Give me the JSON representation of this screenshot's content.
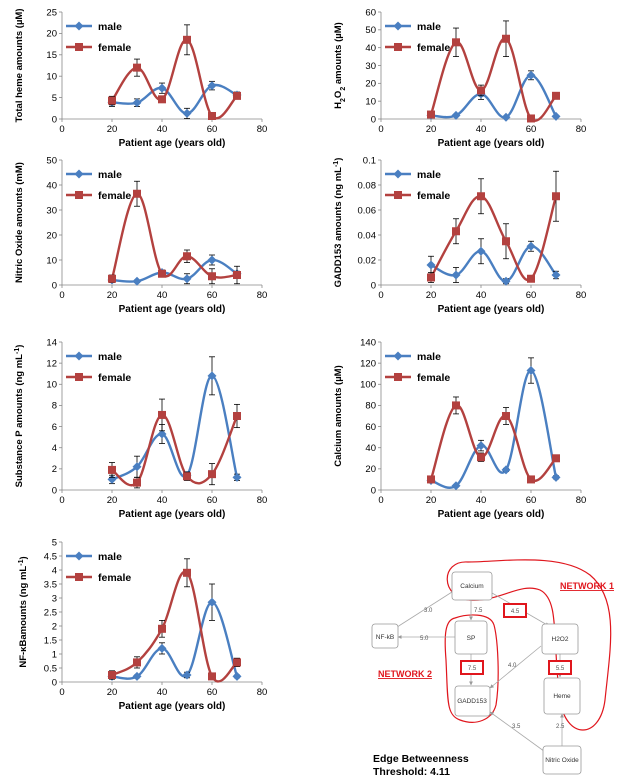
{
  "colors": {
    "male": "#4a7fc1",
    "female": "#b3413f",
    "network": "#e0161d"
  },
  "chart_data": [
    {
      "type": "line",
      "ylabel": "Total heme amounts (µM)",
      "xlabel": "Patient age (years old)",
      "xlim": [
        0,
        80
      ],
      "xticks": [
        0,
        20,
        40,
        60,
        80
      ],
      "ylim": [
        0,
        25
      ],
      "yticks": [
        0,
        5,
        10,
        15,
        20,
        25
      ],
      "legend": "top-left",
      "series": [
        {
          "name": "male",
          "x": [
            20,
            30,
            40,
            50,
            60,
            70
          ],
          "y": [
            3.9,
            3.8,
            7.2,
            1.3,
            7.8,
            5.6
          ],
          "err": [
            1.0,
            0.9,
            1.2,
            1.2,
            1.0,
            0.7
          ]
        },
        {
          "name": "female",
          "x": [
            20,
            30,
            40,
            50,
            60,
            70
          ],
          "y": [
            4.3,
            12.0,
            4.6,
            18.5,
            0.7,
            5.4
          ],
          "err": [
            1.0,
            2.0,
            0.6,
            3.5,
            0.3,
            0.7
          ]
        }
      ]
    },
    {
      "type": "line",
      "ylabel": "H2O2 amounts (µM)",
      "xlabel": "Patient age (years old)",
      "xlim": [
        0,
        80
      ],
      "xticks": [
        0,
        20,
        40,
        60,
        80
      ],
      "ylim": [
        0,
        60
      ],
      "yticks": [
        0,
        10,
        20,
        30,
        40,
        50,
        60
      ],
      "legend": "top-left",
      "series": [
        {
          "name": "male",
          "x": [
            20,
            30,
            40,
            50,
            60,
            70
          ],
          "y": [
            2.0,
            2.0,
            14.0,
            1.0,
            24.5,
            1.5
          ],
          "err": [
            0.5,
            0.5,
            3.0,
            0.5,
            2.5,
            0.5
          ]
        },
        {
          "name": "female",
          "x": [
            20,
            30,
            40,
            50,
            60,
            70
          ],
          "y": [
            2.5,
            43.0,
            16.0,
            45.0,
            0.3,
            13.0
          ],
          "err": [
            0.6,
            8.0,
            3.0,
            10.0,
            0.2,
            1.2
          ]
        }
      ]
    },
    {
      "type": "line",
      "ylabel": "Nitric Oxide amounts (mM)",
      "xlabel": "Patient age (years old)",
      "xlim": [
        0,
        80
      ],
      "xticks": [
        0,
        20,
        40,
        60,
        80
      ],
      "ylim": [
        0,
        50
      ],
      "yticks": [
        0,
        10,
        20,
        30,
        40,
        50
      ],
      "legend": "top-left",
      "series": [
        {
          "name": "male",
          "x": [
            20,
            30,
            40,
            50,
            60,
            70
          ],
          "y": [
            2.0,
            1.5,
            5.0,
            2.5,
            10.0,
            4.5
          ],
          "err": [
            0.5,
            0.5,
            1.0,
            2.0,
            2.0,
            1.0
          ]
        },
        {
          "name": "female",
          "x": [
            20,
            30,
            40,
            50,
            60,
            70
          ],
          "y": [
            2.5,
            36.5,
            4.5,
            11.5,
            3.5,
            4.0
          ],
          "err": [
            1.5,
            5.0,
            1.0,
            2.5,
            3.0,
            3.5
          ]
        }
      ]
    },
    {
      "type": "line",
      "ylabel": "GADD153 amounts (ng mL-1)",
      "xlabel": "Patient age (years old)",
      "xlim": [
        0,
        80
      ],
      "xticks": [
        0,
        20,
        40,
        60,
        80
      ],
      "ylim": [
        0,
        0.1
      ],
      "yticks": [
        0,
        0.02,
        0.04,
        0.06,
        0.08,
        0.1
      ],
      "legend": "top-left",
      "series": [
        {
          "name": "male",
          "x": [
            20,
            30,
            40,
            50,
            60,
            70
          ],
          "y": [
            0.016,
            0.008,
            0.027,
            0.003,
            0.031,
            0.008
          ],
          "err": [
            0.007,
            0.006,
            0.01,
            0.002,
            0.004,
            0.003
          ]
        },
        {
          "name": "female",
          "x": [
            20,
            30,
            40,
            50,
            60,
            70
          ],
          "y": [
            0.006,
            0.043,
            0.071,
            0.035,
            0.005,
            0.071
          ],
          "err": [
            0.004,
            0.01,
            0.014,
            0.014,
            0.002,
            0.02
          ]
        }
      ]
    },
    {
      "type": "line",
      "ylabel": "Substance P amounts (ng mL-1)",
      "xlabel": "Patient age (years old)",
      "xlim": [
        0,
        80
      ],
      "xticks": [
        0,
        20,
        40,
        60,
        80
      ],
      "ylim": [
        0,
        14
      ],
      "yticks": [
        0,
        2,
        4,
        6,
        8,
        10,
        12,
        14
      ],
      "legend": "top-left",
      "series": [
        {
          "name": "male",
          "x": [
            20,
            30,
            40,
            50,
            60,
            70
          ],
          "y": [
            1.0,
            2.2,
            5.3,
            1.4,
            10.8,
            1.2
          ],
          "err": [
            0.4,
            1.0,
            0.9,
            0.3,
            1.8,
            0.3
          ]
        },
        {
          "name": "female",
          "x": [
            20,
            30,
            40,
            50,
            60,
            70
          ],
          "y": [
            1.9,
            0.7,
            7.1,
            1.3,
            1.5,
            7.0
          ],
          "err": [
            0.7,
            0.5,
            1.5,
            0.4,
            1.0,
            1.1
          ]
        }
      ]
    },
    {
      "type": "line",
      "ylabel": "Calcium amounts (µM)",
      "xlabel": "Patient age (years old)",
      "xlim": [
        0,
        80
      ],
      "xticks": [
        0,
        20,
        40,
        60,
        80
      ],
      "ylim": [
        0,
        140
      ],
      "yticks": [
        0,
        20,
        40,
        60,
        80,
        100,
        120,
        140
      ],
      "legend": "top-left",
      "series": [
        {
          "name": "male",
          "x": [
            20,
            30,
            40,
            50,
            60,
            70
          ],
          "y": [
            9.0,
            4.0,
            42.0,
            19.0,
            113.0,
            12.0
          ],
          "err": [
            1.5,
            1.0,
            5.0,
            1.5,
            12.0,
            1.5
          ]
        },
        {
          "name": "female",
          "x": [
            20,
            30,
            40,
            50,
            60,
            70
          ],
          "y": [
            10.0,
            80.0,
            31.0,
            70.0,
            10.0,
            30.0
          ],
          "err": [
            1.5,
            8.0,
            4.0,
            8.0,
            3.0,
            1.5
          ]
        }
      ]
    },
    {
      "type": "line",
      "ylabel": "NF-κBamounts (ng mL-1)",
      "xlabel": "Patient age (years old)",
      "xlim": [
        0,
        80
      ],
      "xticks": [
        0,
        20,
        40,
        60,
        80
      ],
      "ylim": [
        0,
        5
      ],
      "yticks": [
        0,
        0.5,
        1,
        1.5,
        2,
        2.5,
        3,
        3.5,
        4,
        4.5,
        5
      ],
      "legend": "top-left",
      "series": [
        {
          "name": "male",
          "x": [
            20,
            30,
            40,
            50,
            60,
            70
          ],
          "y": [
            0.2,
            0.2,
            1.2,
            0.25,
            2.85,
            0.2
          ],
          "err": [
            0.05,
            0.05,
            0.2,
            0.1,
            0.65,
            0.05
          ]
        },
        {
          "name": "female",
          "x": [
            20,
            30,
            40,
            50,
            60,
            70
          ],
          "y": [
            0.25,
            0.7,
            1.9,
            3.9,
            0.2,
            0.7
          ],
          "err": [
            0.15,
            0.2,
            0.3,
            0.5,
            0.05,
            0.15
          ]
        }
      ]
    }
  ],
  "network": {
    "nodes": [
      {
        "id": "calcium",
        "label": "Calcium"
      },
      {
        "id": "nfkb",
        "label": "NF-kB"
      },
      {
        "id": "sp",
        "label": "SP"
      },
      {
        "id": "h2o2",
        "label": "H2O2"
      },
      {
        "id": "gadd",
        "label": "GADD153"
      },
      {
        "id": "heme",
        "label": "Heme"
      },
      {
        "id": "no",
        "label": "Nitric Oxide"
      }
    ],
    "edges": [
      {
        "from": "calcium",
        "to": "nfkb",
        "label": "3.0",
        "highlight": false
      },
      {
        "from": "calcium",
        "to": "sp",
        "label": "7.5",
        "highlight": false
      },
      {
        "from": "calcium",
        "to": "h2o2",
        "label": "4.5",
        "highlight": true
      },
      {
        "from": "sp",
        "to": "nfkb",
        "label": "5.0",
        "highlight": false
      },
      {
        "from": "sp",
        "to": "gadd",
        "label": "7.5",
        "highlight": true
      },
      {
        "from": "h2o2",
        "to": "gadd",
        "label": "4.0",
        "highlight": false
      },
      {
        "from": "h2o2",
        "to": "heme",
        "label": "5.5",
        "highlight": true
      },
      {
        "from": "no",
        "to": "gadd",
        "label": "3.5",
        "highlight": false
      },
      {
        "from": "no",
        "to": "heme",
        "label": "2.5",
        "highlight": false
      }
    ],
    "network1_label": "NETWORK 1",
    "network2_label": "NETWORK 2",
    "caption_line1": "Edge Betweenness",
    "caption_line2": "Threshold: 4.11"
  }
}
